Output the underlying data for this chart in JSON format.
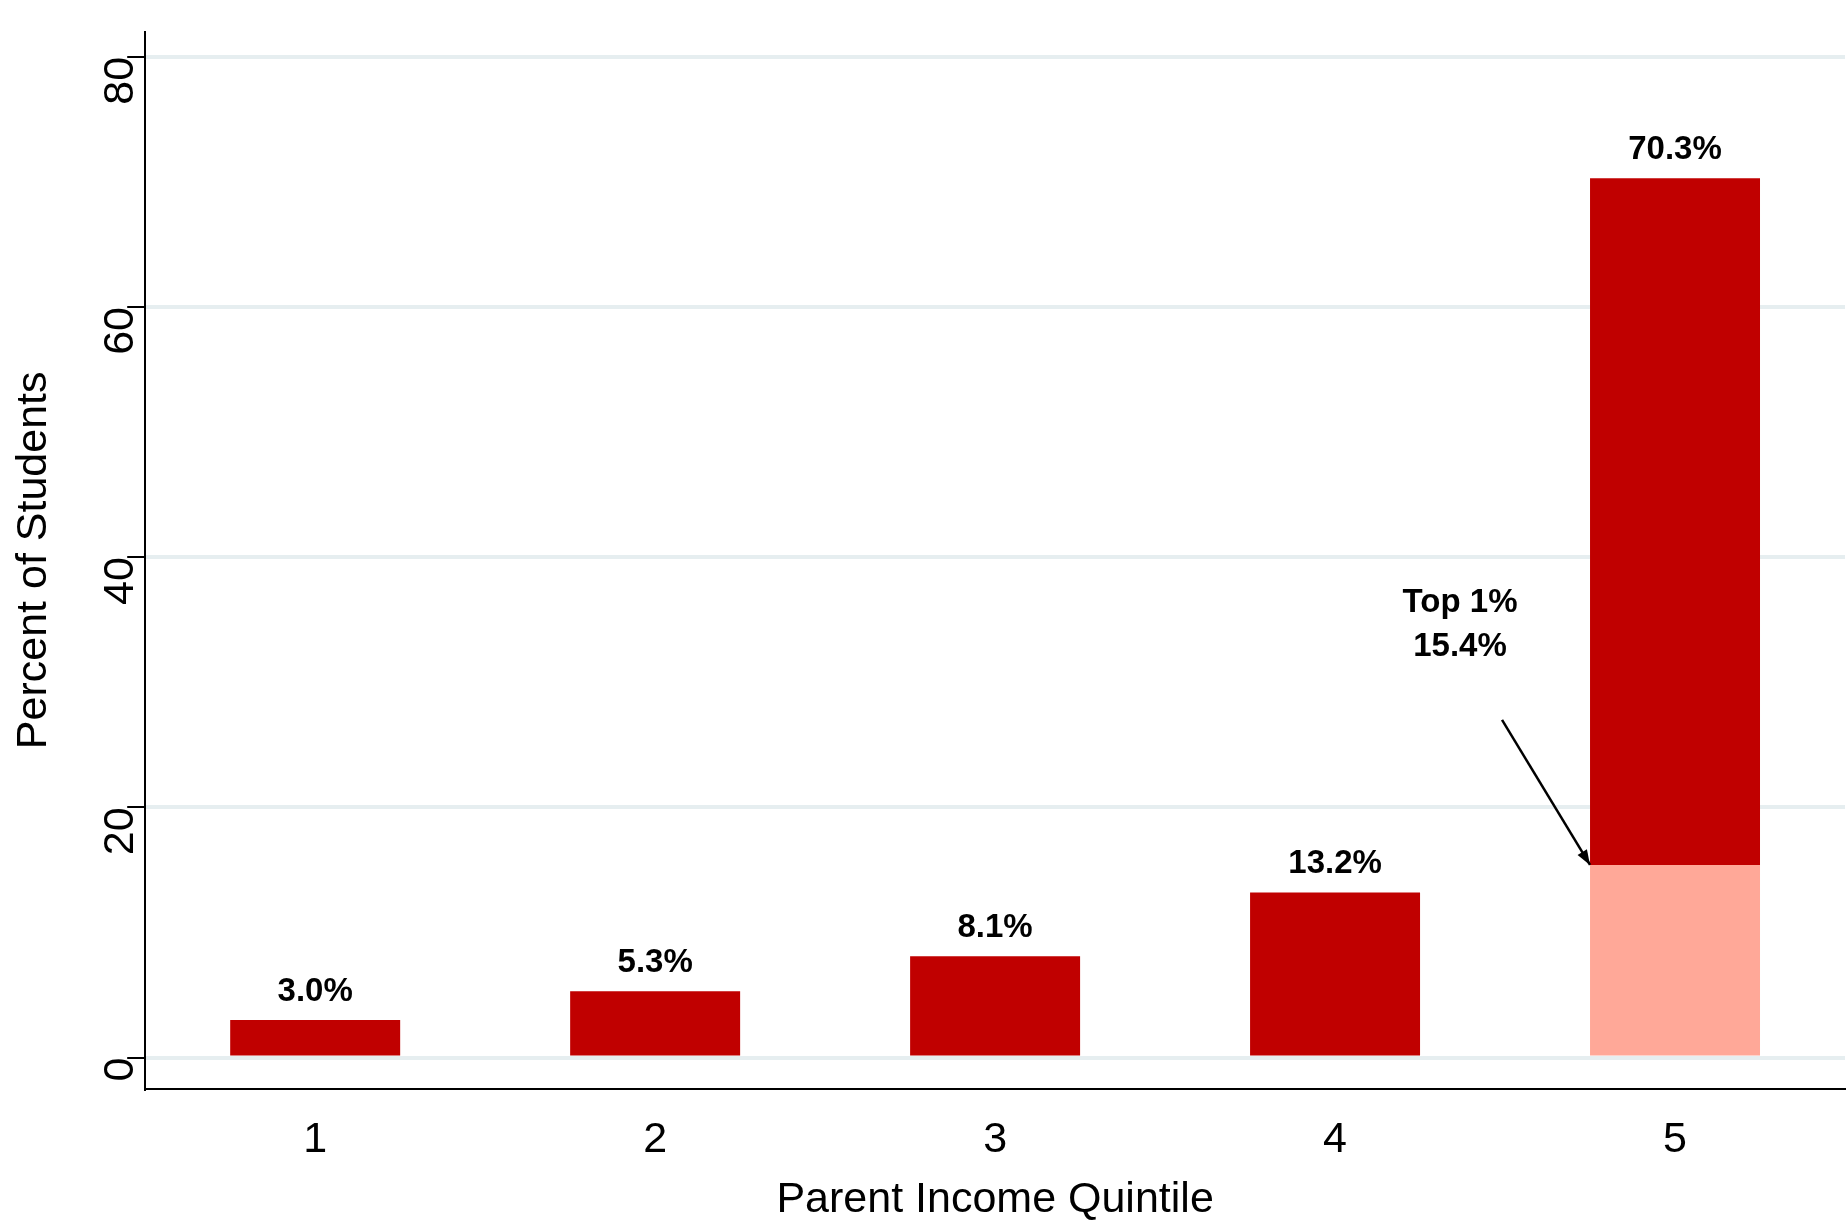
{
  "chart_data": {
    "type": "bar",
    "xlabel": "Parent Income Quintile",
    "ylabel": "Percent of Students",
    "categories": [
      "1",
      "2",
      "3",
      "4",
      "5"
    ],
    "stacked": true,
    "series": [
      {
        "color": "#ffa898",
        "values": [
          null,
          null,
          null,
          null,
          15.4
        ]
      },
      {
        "color": "#c00000",
        "values": [
          3.0,
          5.3,
          8.1,
          13.2,
          54.9
        ]
      }
    ],
    "totals": [
      "3.0%",
      "5.3%",
      "8.1%",
      "13.2%",
      "70.3%"
    ],
    "annotations": [
      "Top 1%\n15.4%"
    ],
    "ylim": [
      -2.5,
      82
    ],
    "yticks": [
      0,
      20,
      40,
      60,
      80
    ],
    "grid": "y",
    "legend": false
  }
}
